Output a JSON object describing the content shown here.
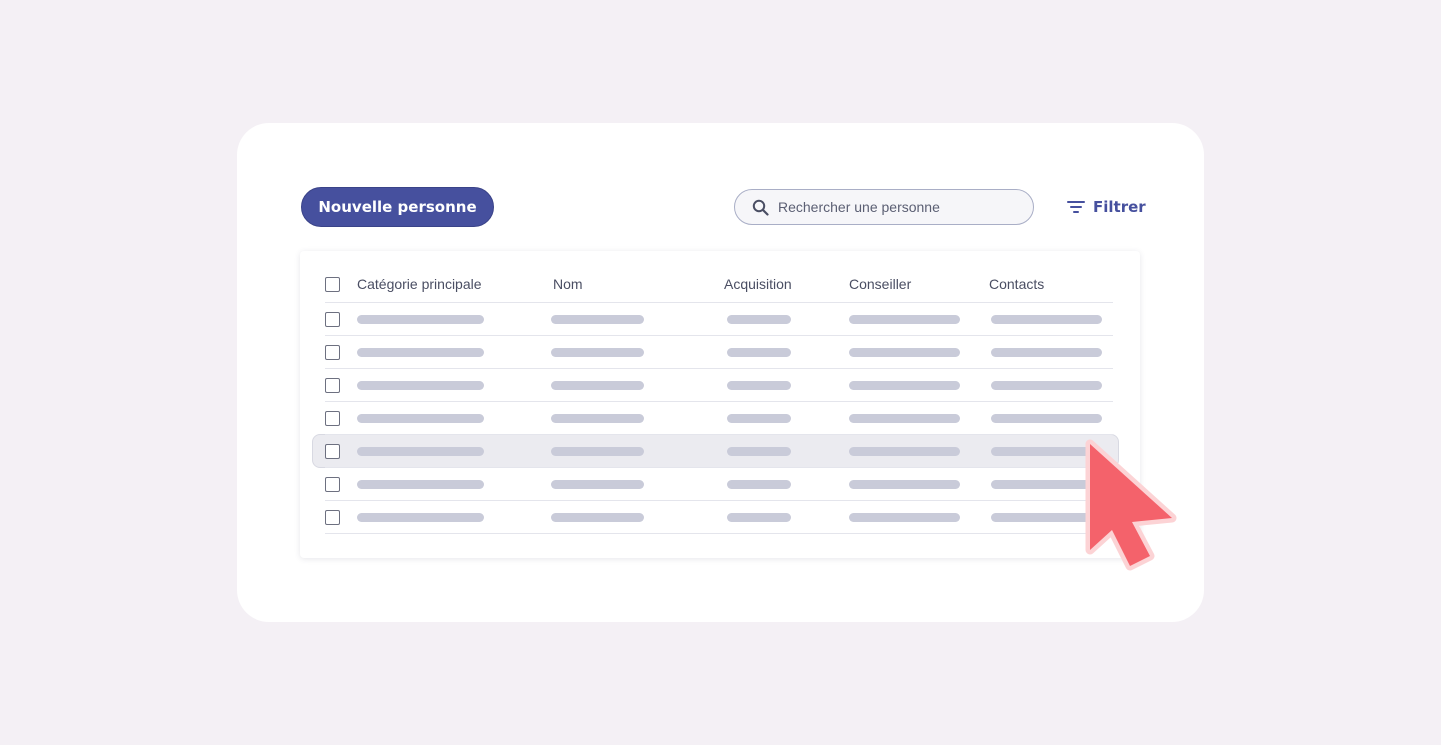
{
  "toolbar": {
    "new_button_label": "Nouvelle personne",
    "search_placeholder": "Rechercher une personne",
    "filter_label": "Filtrer"
  },
  "table": {
    "columns": [
      "Catégorie principale",
      "Nom",
      "Acquisition",
      "Conseiller",
      "Contacts"
    ],
    "row_count": 7,
    "highlighted_row_index": 4
  },
  "colors": {
    "accent": "#46509e",
    "background": "#f4f0f5",
    "placeholder_bar": "#c9cbd9",
    "cursor": "#f4626b"
  },
  "icons": {
    "search": "search-icon",
    "filter": "filter-icon",
    "cursor": "cursor-arrow-icon"
  }
}
